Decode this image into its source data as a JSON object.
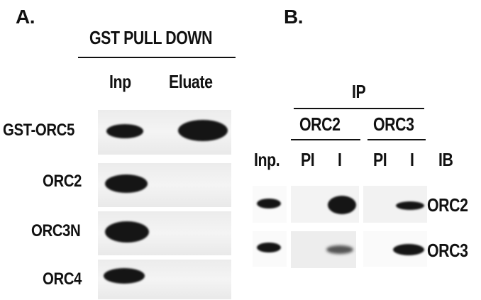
{
  "panel_a": {
    "label": "A.",
    "header": "GST PULL DOWN",
    "columns": [
      "Inp",
      "Eluate"
    ],
    "rows": [
      "GST-ORC5",
      "ORC2",
      "ORC3N",
      "ORC4"
    ]
  },
  "panel_b": {
    "label": "B.",
    "ip_label": "IP",
    "groups": [
      "ORC2",
      "ORC3"
    ],
    "columns": {
      "inp": "Inp.",
      "pi1": "PI",
      "i1": "I",
      "pi2": "PI",
      "i2": "I",
      "ib": "IB"
    },
    "rows": [
      "ORC2",
      "ORC3"
    ]
  }
}
